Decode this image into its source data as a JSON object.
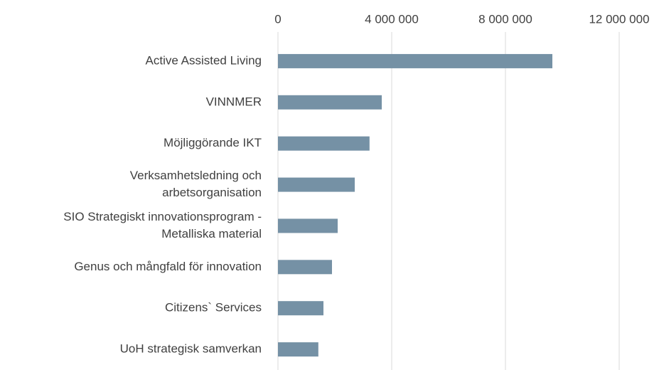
{
  "chart_data": {
    "type": "bar",
    "orientation": "horizontal",
    "categories": [
      [
        "Active Assisted Living"
      ],
      [
        "VINNMER"
      ],
      [
        "Möjliggörande IKT"
      ],
      [
        "Verksamhetsledning och",
        "arbetsorganisation"
      ],
      [
        "SIO Strategiskt innovationsprogram -",
        "Metalliska material"
      ],
      [
        "Genus och mångfald för innovation"
      ],
      [
        "Citizens` Services"
      ],
      [
        "UoH strategisk samverkan"
      ]
    ],
    "values": [
      9650000,
      3650000,
      3220000,
      2700000,
      2100000,
      1900000,
      1600000,
      1420000
    ],
    "color": "#7591a5",
    "xlim": [
      0,
      12000000
    ],
    "xticks": [
      0,
      {
        "value": 4000000,
        "label": "4 000 000"
      },
      {
        "value": 8000000,
        "label": "8 000 000"
      },
      {
        "value": 12000000,
        "label": "12 000 000"
      }
    ],
    "grid": true
  }
}
